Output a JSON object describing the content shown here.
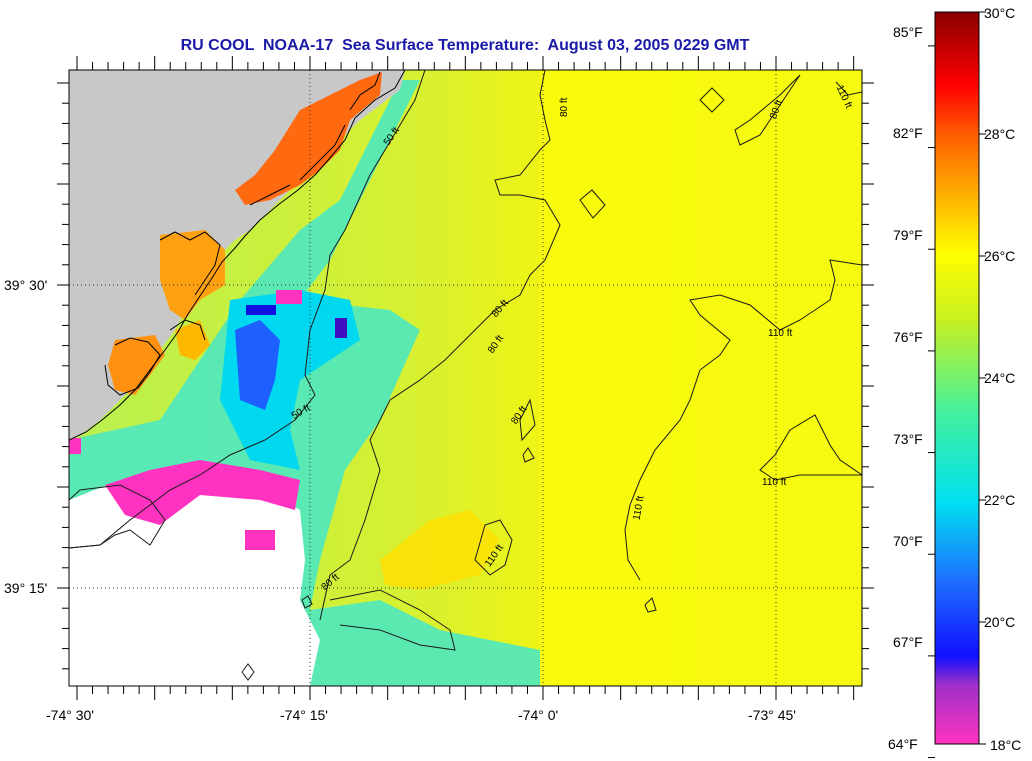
{
  "title": "RU COOL  NOAA-17  Sea Surface Temperature:  August 03, 2005 0229 GMT",
  "map": {
    "lon_ticks": [
      "-74° 30'",
      "-74° 15'",
      "-74° 0'",
      "-73° 45'"
    ],
    "lat_ticks": [
      "39° 30'",
      "39° 15'"
    ],
    "contour_labels": [
      "50 ft",
      "50 ft",
      "80 ft",
      "80 ft",
      "80 ft",
      "80 ft",
      "80 ft",
      "80 ft",
      "110 ft",
      "110 ft",
      "110 ft",
      "110 ft",
      "110 ft"
    ],
    "colors": {
      "land": "#c8c8c8",
      "no_data": "#ffffff",
      "contour": "#000000"
    }
  },
  "colorbar": {
    "fahrenheit_labels": [
      "85°F",
      "82°F",
      "79°F",
      "76°F",
      "73°F",
      "70°F",
      "67°F",
      "64°F"
    ],
    "celsius_labels": [
      "30°C",
      "28°C",
      "26°C",
      "24°C",
      "22°C",
      "20°C",
      "18°C"
    ],
    "range_celsius": [
      18,
      30
    ],
    "range_fahrenheit": [
      64,
      86
    ]
  }
}
